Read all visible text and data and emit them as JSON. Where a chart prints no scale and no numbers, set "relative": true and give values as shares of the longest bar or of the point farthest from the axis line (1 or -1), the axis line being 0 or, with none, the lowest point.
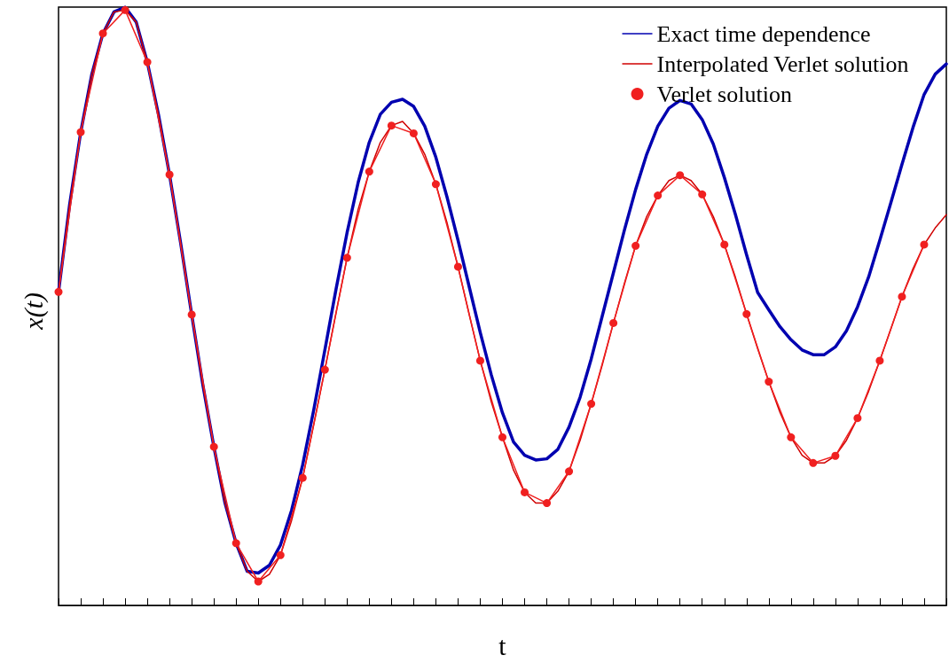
{
  "chart_data": {
    "type": "line",
    "xlabel": "t",
    "ylabel": "x(t)",
    "relative": true,
    "grid": false,
    "legend": "top right",
    "categories": [
      null,
      null,
      null,
      null,
      null,
      null,
      null,
      null,
      null,
      null,
      null,
      null,
      null,
      null,
      null,
      null,
      null,
      null,
      null,
      null,
      null,
      null,
      null,
      null,
      null,
      null,
      null,
      null,
      null,
      null,
      null,
      null,
      null,
      null,
      null,
      null,
      null,
      null,
      null,
      null,
      null,
      null,
      null,
      null,
      null,
      null,
      null,
      null,
      null,
      null,
      null,
      null,
      null,
      null,
      null,
      null,
      null,
      null,
      null,
      null,
      null,
      null,
      null,
      null,
      null,
      null,
      null,
      null,
      null,
      null,
      null,
      null,
      null,
      null,
      null,
      null,
      null,
      null,
      null,
      null,
      null
    ],
    "series": [
      {
        "name": "Exact time dependence",
        "color": "#0000b0",
        "marker": "none",
        "line_style": "solid",
        "values": [
          0.524,
          0.67,
          0.791,
          0.888,
          0.956,
          0.992,
          1.0,
          0.975,
          0.908,
          0.821,
          0.72,
          0.606,
          0.486,
          0.369,
          0.265,
          0.171,
          0.104,
          0.057,
          0.054,
          0.067,
          0.101,
          0.159,
          0.235,
          0.327,
          0.427,
          0.528,
          0.623,
          0.707,
          0.774,
          0.821,
          0.841,
          0.846,
          0.834,
          0.801,
          0.749,
          0.683,
          0.61,
          0.533,
          0.456,
          0.385,
          0.322,
          0.273,
          0.251,
          0.243,
          0.245,
          0.261,
          0.298,
          0.348,
          0.412,
          0.484,
          0.556,
          0.628,
          0.695,
          0.754,
          0.801,
          0.831,
          0.844,
          0.838,
          0.812,
          0.771,
          0.715,
          0.653,
          0.586,
          0.523,
          0.494,
          0.466,
          0.444,
          0.427,
          0.419,
          0.419,
          0.432,
          0.459,
          0.499,
          0.549,
          0.61,
          0.673,
          0.737,
          0.799,
          0.854,
          0.888,
          0.905
        ]
      },
      {
        "name": "Interpolated Verlet solution",
        "color": "#d00000",
        "marker": "none",
        "line_style": "solid",
        "values": [
          0.524,
          0.67,
          0.791,
          0.888,
          0.956,
          0.992,
          0.995,
          0.975,
          0.908,
          0.821,
          0.72,
          0.606,
          0.486,
          0.369,
          0.265,
          0.171,
          0.104,
          0.057,
          0.04,
          0.052,
          0.084,
          0.142,
          0.213,
          0.302,
          0.394,
          0.489,
          0.581,
          0.662,
          0.725,
          0.774,
          0.802,
          0.809,
          0.789,
          0.754,
          0.704,
          0.64,
          0.566,
          0.486,
          0.409,
          0.34,
          0.281,
          0.226,
          0.189,
          0.171,
          0.171,
          0.191,
          0.224,
          0.276,
          0.337,
          0.402,
          0.472,
          0.539,
          0.601,
          0.65,
          0.685,
          0.71,
          0.719,
          0.71,
          0.687,
          0.65,
          0.603,
          0.548,
          0.487,
          0.429,
          0.374,
          0.323,
          0.281,
          0.251,
          0.238,
          0.238,
          0.25,
          0.276,
          0.313,
          0.358,
          0.409,
          0.462,
          0.516,
          0.563,
          0.603,
          0.631,
          0.653
        ]
      },
      {
        "name": "Verlet solution",
        "color": "#f02020",
        "marker": "circle",
        "values": [
          0.524,
          null,
          0.791,
          null,
          0.956,
          null,
          0.995,
          null,
          0.908,
          null,
          0.72,
          null,
          0.486,
          null,
          0.265,
          null,
          0.104,
          null,
          0.04,
          null,
          0.084,
          null,
          0.213,
          null,
          0.394,
          null,
          0.581,
          null,
          0.725,
          null,
          0.802,
          null,
          0.789,
          null,
          0.704,
          null,
          0.566,
          null,
          0.409,
          null,
          0.281,
          null,
          0.189,
          null,
          0.171,
          null,
          0.224,
          null,
          0.337,
          null,
          0.472,
          null,
          0.601,
          null,
          0.685,
          null,
          0.719,
          null,
          0.687,
          null,
          0.603,
          null,
          0.487,
          null,
          0.374,
          null,
          0.281,
          null,
          0.238,
          null,
          0.25,
          null,
          0.313,
          null,
          0.409,
          null,
          0.516,
          null,
          0.603,
          null,
          null
        ]
      }
    ]
  }
}
